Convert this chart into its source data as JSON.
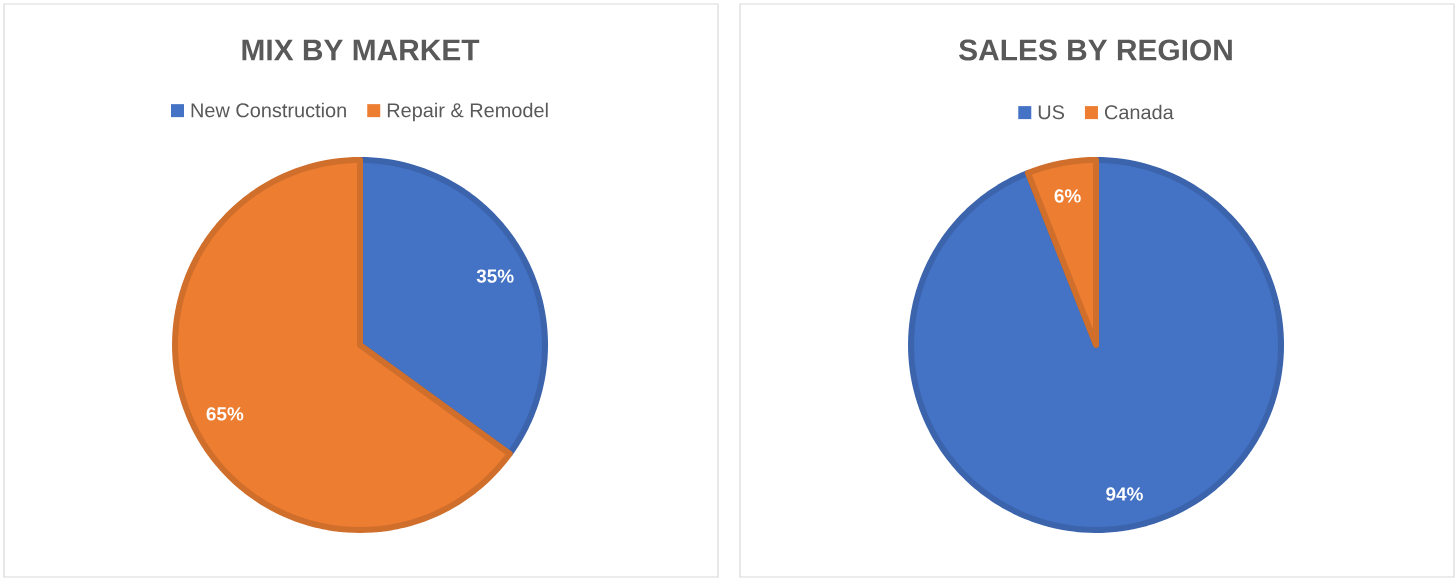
{
  "chart_data": [
    {
      "type": "pie",
      "title": "MIX BY MARKET",
      "categories": [
        "New Construction",
        "Repair & Remodel"
      ],
      "values": [
        35,
        65
      ],
      "colors": [
        "#4472c4",
        "#ed7d31"
      ],
      "value_labels": [
        "35%",
        "65%"
      ],
      "legend": "top"
    },
    {
      "type": "pie",
      "title": "SALES BY REGION",
      "categories": [
        "US",
        "Canada"
      ],
      "values": [
        94,
        6
      ],
      "colors": [
        "#4472c4",
        "#ed7d31"
      ],
      "value_labels": [
        "94%",
        "6%"
      ],
      "legend": "top"
    }
  ]
}
